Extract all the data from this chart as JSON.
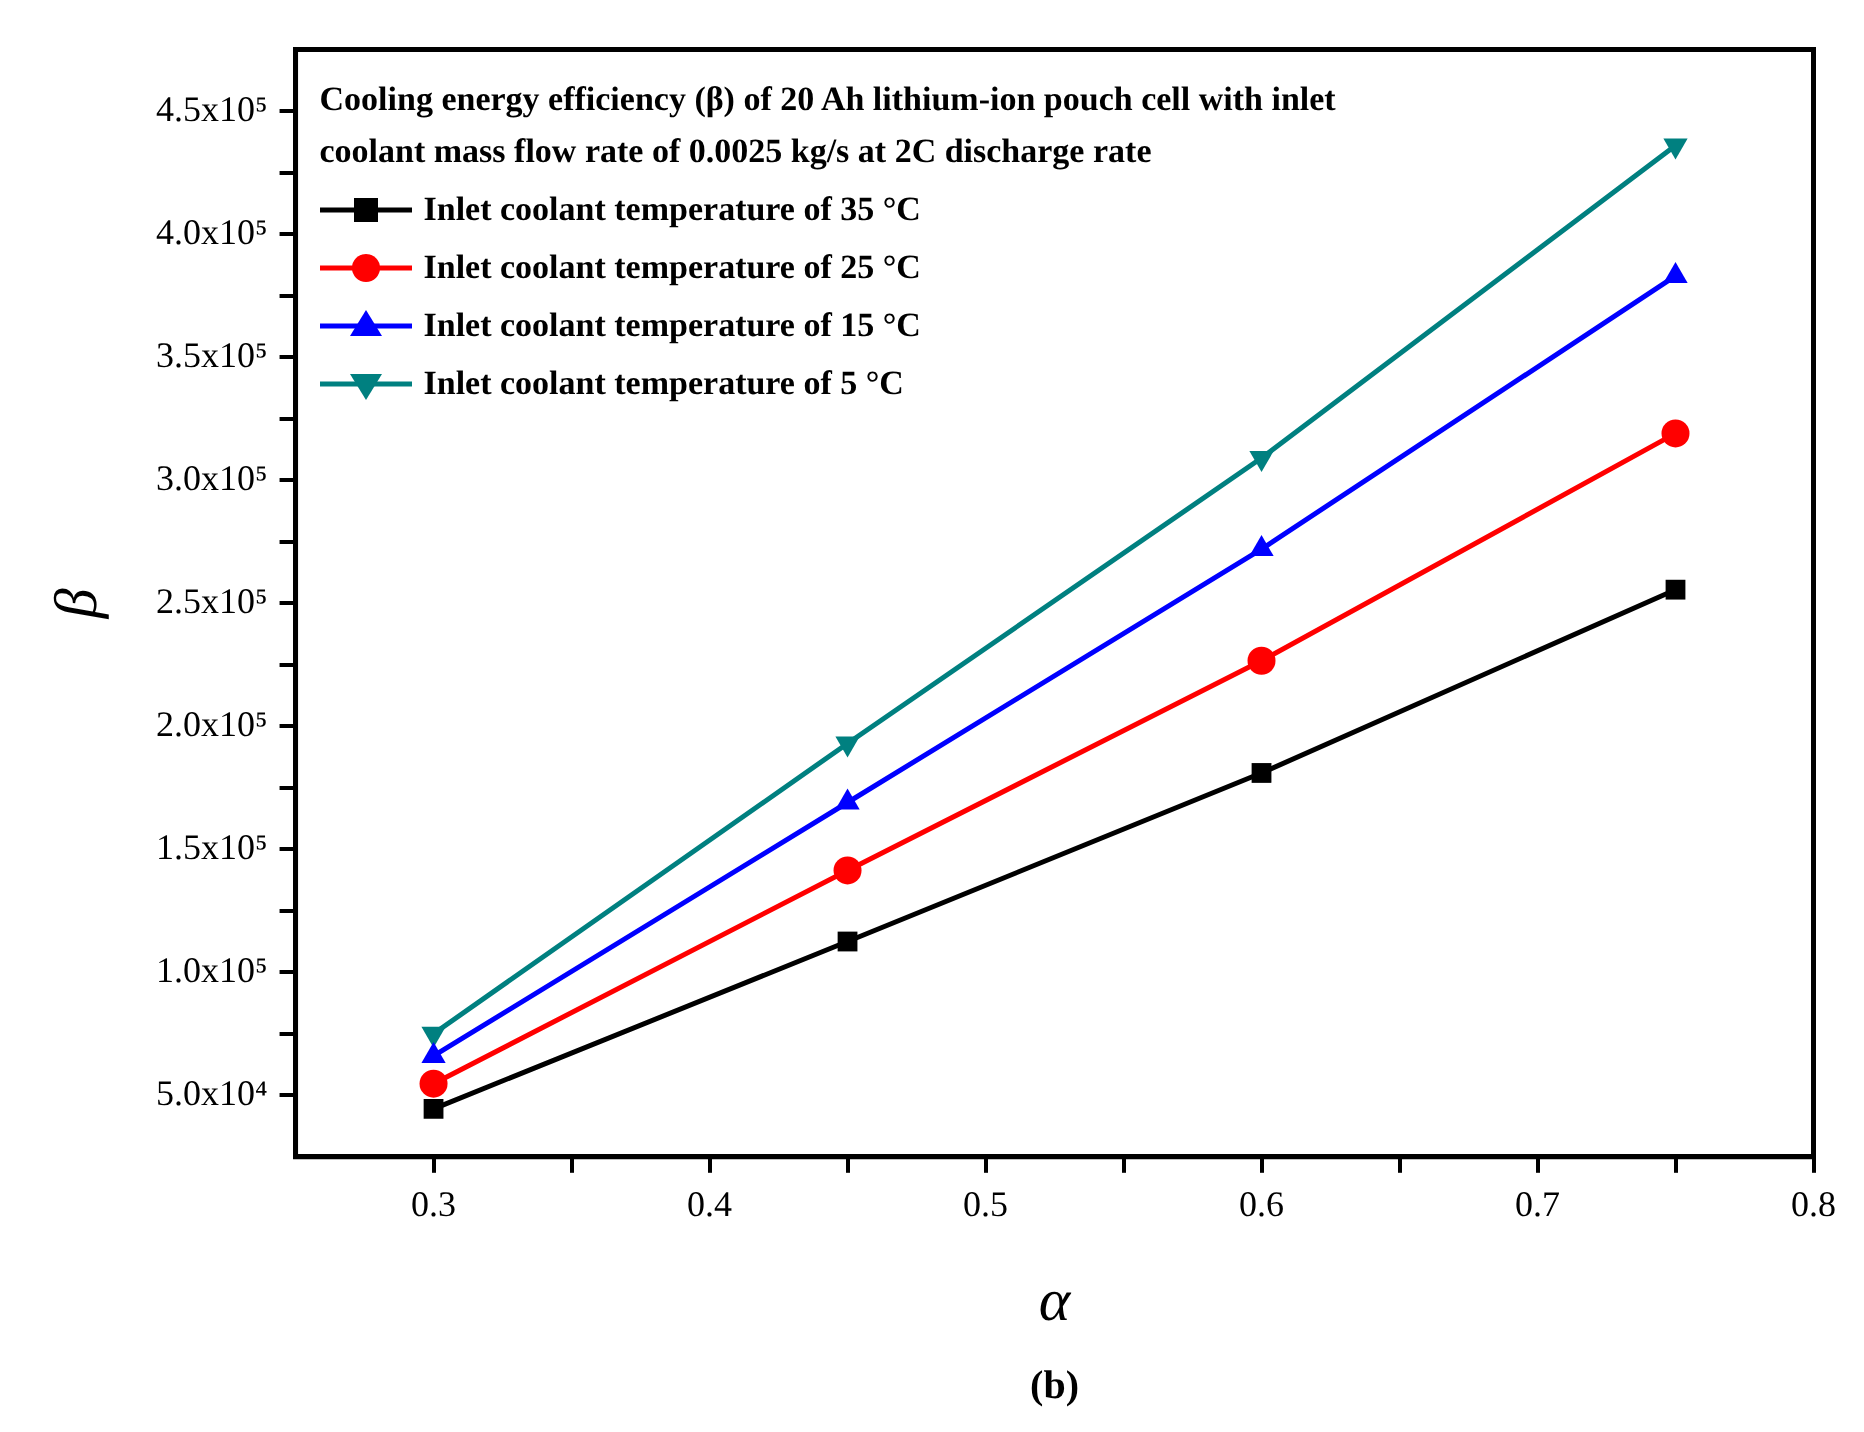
{
  "chart_data": {
    "type": "line",
    "title": "Cooling energy efficiency (β) of 20 Ah lithium-ion pouch cell with inlet coolant mass flow rate of 0.0025 kg/s at 2C discharge rate",
    "xlabel": "α",
    "ylabel": "β",
    "annotations": [
      "(b)"
    ],
    "x": [
      0.3,
      0.45,
      0.6,
      0.75
    ],
    "series": [
      {
        "name": "Inlet coolant temperature of 35 °C",
        "color": "#000000",
        "marker": "square",
        "values": [
          44500,
          112500,
          181000,
          255500
        ]
      },
      {
        "name": "Inlet coolant temperature of 25 °C",
        "color": "#ff0000",
        "marker": "circle",
        "values": [
          54700,
          141400,
          226600,
          319000
        ]
      },
      {
        "name": "Inlet coolant temperature of 15 °C",
        "color": "#0000ff",
        "marker": "triangle",
        "values": [
          66000,
          169000,
          272000,
          383000
        ]
      },
      {
        "name": "Inlet coolant temperature of 5 °C",
        "color": "#008080",
        "marker": "triangle-down",
        "values": [
          75000,
          193000,
          309000,
          436000
        ]
      }
    ],
    "xlim": [
      0.25,
      0.8
    ],
    "xticks": [
      0.3,
      {
        "value": 0.35,
        "label": null
      },
      0.4,
      {
        "value": 0.45,
        "label": null
      },
      0.5,
      {
        "value": 0.55,
        "label": null
      },
      0.6,
      {
        "value": 0.65,
        "label": null
      },
      0.7,
      {
        "value": 0.75,
        "label": null
      },
      0.8
    ],
    "ylim": [
      25000,
      475000
    ],
    "yticks": [
      {
        "value": 50000,
        "label": "5.0x10⁴"
      },
      {
        "value": 75000,
        "label": null
      },
      {
        "value": 100000,
        "label": "1.0x10⁵"
      },
      {
        "value": 125000,
        "label": null
      },
      {
        "value": 150000,
        "label": "1.5x10⁵"
      },
      {
        "value": 175000,
        "label": null
      },
      {
        "value": 200000,
        "label": "2.0x10⁵"
      },
      {
        "value": 225000,
        "label": null
      },
      {
        "value": 250000,
        "label": "2.5x10⁵"
      },
      {
        "value": 275000,
        "label": null
      },
      {
        "value": 300000,
        "label": "3.0x10⁵"
      },
      {
        "value": 325000,
        "label": null
      },
      {
        "value": 350000,
        "label": "3.5x10⁵"
      },
      {
        "value": 375000,
        "label": null
      },
      {
        "value": 400000,
        "label": "4.0x10⁵"
      },
      {
        "value": 425000,
        "label": null
      },
      {
        "value": 450000,
        "label": "4.5x10⁵"
      }
    ],
    "legend": "top left",
    "line_style": "solid"
  }
}
